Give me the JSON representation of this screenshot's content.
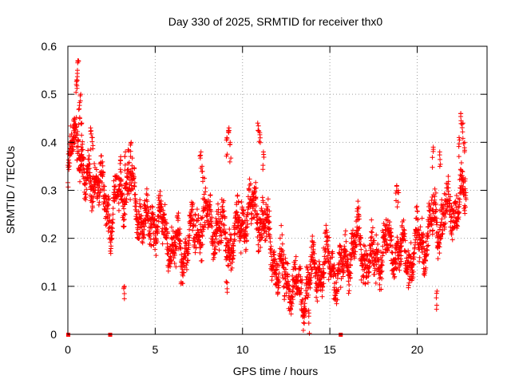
{
  "chart_data": {
    "type": "scatter",
    "title": "Day 330 of 2025, SRMTID for receiver thx0",
    "xlabel": "GPS time / hours",
    "ylabel": "SRMTID / TECUs",
    "xlim": [
      0,
      24
    ],
    "ylim": [
      0,
      0.6
    ],
    "x_ticks": [
      0,
      5,
      10,
      15,
      20
    ],
    "y_ticks": [
      0,
      0.1,
      0.2,
      0.3,
      0.4,
      0.5,
      0.6
    ],
    "x_tick_labels": [
      "0",
      "5",
      "10",
      "15",
      "20"
    ],
    "y_tick_labels": [
      "0",
      "0.1",
      "0.2",
      "0.3",
      "0.4",
      "0.5",
      "0.6"
    ],
    "grid": true,
    "marker": "plus",
    "color": "#ff0000",
    "zero_markers_x": [
      0.0,
      2.4,
      15.6
    ],
    "series": [
      {
        "name": "SRMTID",
        "trend_x": [
          0.0,
          0.3,
          0.6,
          1.0,
          1.5,
          2.0,
          2.5,
          3.0,
          3.5,
          4.0,
          4.5,
          5.0,
          5.5,
          6.0,
          6.5,
          7.0,
          7.5,
          8.0,
          8.5,
          9.0,
          9.5,
          10.0,
          10.5,
          11.0,
          11.5,
          12.0,
          12.5,
          13.0,
          13.5,
          14.0,
          14.5,
          15.0,
          15.5,
          16.0,
          16.5,
          17.0,
          17.5,
          18.0,
          18.5,
          19.0,
          19.5,
          20.0,
          20.5,
          21.0,
          21.5,
          22.0,
          22.5,
          22.8
        ],
        "trend_y": [
          0.33,
          0.4,
          0.42,
          0.3,
          0.34,
          0.29,
          0.24,
          0.3,
          0.32,
          0.26,
          0.22,
          0.25,
          0.22,
          0.18,
          0.17,
          0.2,
          0.23,
          0.24,
          0.22,
          0.2,
          0.19,
          0.24,
          0.26,
          0.25,
          0.2,
          0.14,
          0.11,
          0.1,
          0.08,
          0.13,
          0.14,
          0.15,
          0.12,
          0.16,
          0.2,
          0.16,
          0.15,
          0.18,
          0.19,
          0.17,
          0.16,
          0.18,
          0.2,
          0.24,
          0.25,
          0.26,
          0.28,
          0.29
        ],
        "spread": 0.06,
        "spikes": [
          {
            "x": 0.6,
            "y": 0.57
          },
          {
            "x": 0.55,
            "y": 0.55
          },
          {
            "x": 0.5,
            "y": 0.53
          },
          {
            "x": 0.7,
            "y": 0.5
          },
          {
            "x": 0.65,
            "y": 0.47
          },
          {
            "x": 0.4,
            "y": 0.45
          },
          {
            "x": 0.8,
            "y": 0.44
          },
          {
            "x": 1.4,
            "y": 0.41
          },
          {
            "x": 1.3,
            "y": 0.43
          },
          {
            "x": 3.6,
            "y": 0.4
          },
          {
            "x": 3.3,
            "y": 0.38
          },
          {
            "x": 3.0,
            "y": 0.37
          },
          {
            "x": 7.6,
            "y": 0.38
          },
          {
            "x": 7.7,
            "y": 0.35
          },
          {
            "x": 9.2,
            "y": 0.43
          },
          {
            "x": 9.1,
            "y": 0.41
          },
          {
            "x": 9.3,
            "y": 0.4
          },
          {
            "x": 10.9,
            "y": 0.44
          },
          {
            "x": 11.0,
            "y": 0.42
          },
          {
            "x": 11.2,
            "y": 0.38
          },
          {
            "x": 18.8,
            "y": 0.31
          },
          {
            "x": 18.9,
            "y": 0.3
          },
          {
            "x": 20.9,
            "y": 0.39
          },
          {
            "x": 21.3,
            "y": 0.38
          },
          {
            "x": 22.5,
            "y": 0.46
          },
          {
            "x": 22.6,
            "y": 0.44
          },
          {
            "x": 22.4,
            "y": 0.41
          },
          {
            "x": 22.7,
            "y": 0.4
          },
          {
            "x": 13.5,
            "y": 0.04
          },
          {
            "x": 13.8,
            "y": 0.05
          },
          {
            "x": 3.2,
            "y": 0.1
          },
          {
            "x": 9.1,
            "y": 0.11
          },
          {
            "x": 21.1,
            "y": 0.09
          }
        ]
      }
    ]
  }
}
